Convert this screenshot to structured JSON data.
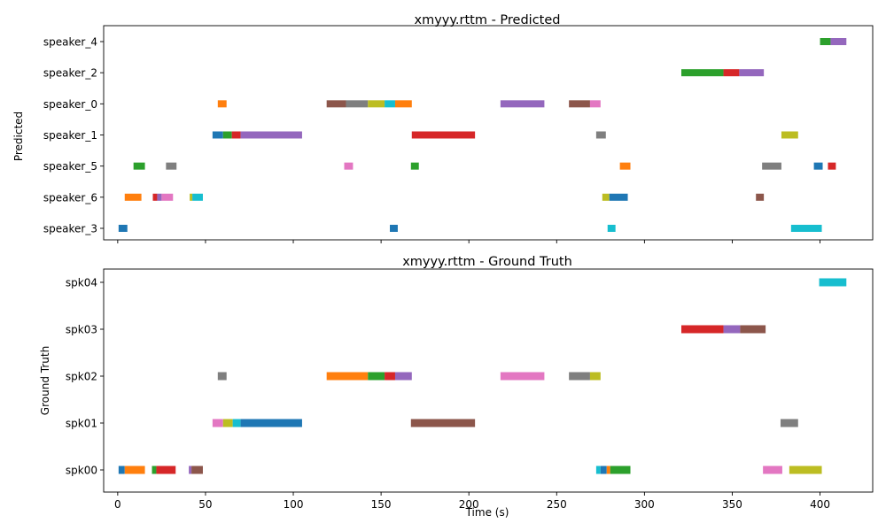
{
  "figure": {
    "xlabel": "Time (s)",
    "x_ticks": [
      0,
      50,
      100,
      150,
      200,
      250,
      300,
      350,
      400
    ],
    "xlim": [
      -8,
      430
    ]
  },
  "chart_data": [
    {
      "type": "bar",
      "orientation": "horizontal-segments",
      "title": "xmyyy.rttm - Predicted",
      "ylabel": "Predicted",
      "rows": [
        "speaker_4",
        "speaker_2",
        "speaker_0",
        "speaker_1",
        "speaker_5",
        "speaker_6",
        "speaker_3"
      ],
      "segments": [
        {
          "row": "speaker_3",
          "start": 0.5,
          "end": 5.5,
          "color": "#1f77b4"
        },
        {
          "row": "speaker_6",
          "start": 4,
          "end": 13.5,
          "color": "#ff7f0e"
        },
        {
          "row": "speaker_5",
          "start": 9,
          "end": 15.5,
          "color": "#2ca02c"
        },
        {
          "row": "speaker_6",
          "start": 20,
          "end": 22.5,
          "color": "#d62728"
        },
        {
          "row": "speaker_6",
          "start": 22.5,
          "end": 25,
          "color": "#9467bd"
        },
        {
          "row": "speaker_6",
          "start": 25,
          "end": 31.5,
          "color": "#e377c2"
        },
        {
          "row": "speaker_5",
          "start": 27.5,
          "end": 33.5,
          "color": "#7f7f7f"
        },
        {
          "row": "speaker_6",
          "start": 41,
          "end": 42.5,
          "color": "#bcbd22"
        },
        {
          "row": "speaker_6",
          "start": 42.5,
          "end": 48.5,
          "color": "#17becf"
        },
        {
          "row": "speaker_1",
          "start": 54,
          "end": 60,
          "color": "#1f77b4"
        },
        {
          "row": "speaker_0",
          "start": 57,
          "end": 62,
          "color": "#ff7f0e"
        },
        {
          "row": "speaker_1",
          "start": 60,
          "end": 65,
          "color": "#2ca02c"
        },
        {
          "row": "speaker_1",
          "start": 65,
          "end": 70,
          "color": "#d62728"
        },
        {
          "row": "speaker_1",
          "start": 70,
          "end": 105,
          "color": "#9467bd"
        },
        {
          "row": "speaker_0",
          "start": 119,
          "end": 130,
          "color": "#8c564b"
        },
        {
          "row": "speaker_5",
          "start": 129,
          "end": 134,
          "color": "#e377c2"
        },
        {
          "row": "speaker_0",
          "start": 130,
          "end": 142.5,
          "color": "#7f7f7f"
        },
        {
          "row": "speaker_0",
          "start": 142.5,
          "end": 152,
          "color": "#bcbd22"
        },
        {
          "row": "speaker_0",
          "start": 152,
          "end": 158,
          "color": "#17becf"
        },
        {
          "row": "speaker_3",
          "start": 155,
          "end": 159.5,
          "color": "#1f77b4"
        },
        {
          "row": "speaker_0",
          "start": 158,
          "end": 167.5,
          "color": "#ff7f0e"
        },
        {
          "row": "speaker_5",
          "start": 167,
          "end": 171.5,
          "color": "#2ca02c"
        },
        {
          "row": "speaker_1",
          "start": 167.5,
          "end": 203.5,
          "color": "#d62728"
        },
        {
          "row": "speaker_0",
          "start": 218,
          "end": 243,
          "color": "#9467bd"
        },
        {
          "row": "speaker_0",
          "start": 257,
          "end": 269,
          "color": "#8c564b"
        },
        {
          "row": "speaker_0",
          "start": 269,
          "end": 275,
          "color": "#e377c2"
        },
        {
          "row": "speaker_1",
          "start": 272.5,
          "end": 278,
          "color": "#7f7f7f"
        },
        {
          "row": "speaker_6",
          "start": 276,
          "end": 280,
          "color": "#bcbd22"
        },
        {
          "row": "speaker_3",
          "start": 279,
          "end": 283.5,
          "color": "#17becf"
        },
        {
          "row": "speaker_6",
          "start": 280,
          "end": 290.5,
          "color": "#1f77b4"
        },
        {
          "row": "speaker_5",
          "start": 286,
          "end": 292,
          "color": "#ff7f0e"
        },
        {
          "row": "speaker_2",
          "start": 321,
          "end": 345,
          "color": "#2ca02c"
        },
        {
          "row": "speaker_2",
          "start": 345,
          "end": 354,
          "color": "#d62728"
        },
        {
          "row": "speaker_2",
          "start": 354,
          "end": 368,
          "color": "#9467bd"
        },
        {
          "row": "speaker_6",
          "start": 363.5,
          "end": 368,
          "color": "#8c564b"
        },
        {
          "row": "speaker_5",
          "start": 367,
          "end": 378,
          "color": "#7f7f7f"
        },
        {
          "row": "speaker_1",
          "start": 378,
          "end": 387.5,
          "color": "#bcbd22"
        },
        {
          "row": "speaker_3",
          "start": 383.5,
          "end": 401,
          "color": "#17becf"
        },
        {
          "row": "speaker_5",
          "start": 396.5,
          "end": 401.5,
          "color": "#1f77b4"
        },
        {
          "row": "speaker_4",
          "start": 400,
          "end": 406,
          "color": "#2ca02c"
        },
        {
          "row": "speaker_5",
          "start": 404.5,
          "end": 409,
          "color": "#d62728"
        },
        {
          "row": "speaker_4",
          "start": 406,
          "end": 415,
          "color": "#9467bd"
        }
      ]
    },
    {
      "type": "bar",
      "orientation": "horizontal-segments",
      "title": "xmyyy.rttm - Ground Truth",
      "ylabel": "Ground Truth",
      "rows": [
        "spk04",
        "spk03",
        "spk02",
        "spk01",
        "spk00"
      ],
      "segments": [
        {
          "row": "spk00",
          "start": 0.5,
          "end": 4,
          "color": "#1f77b4"
        },
        {
          "row": "spk00",
          "start": 4,
          "end": 15.5,
          "color": "#ff7f0e"
        },
        {
          "row": "spk00",
          "start": 19.5,
          "end": 22,
          "color": "#2ca02c"
        },
        {
          "row": "spk00",
          "start": 22,
          "end": 33,
          "color": "#d62728"
        },
        {
          "row": "spk00",
          "start": 40.5,
          "end": 42,
          "color": "#9467bd"
        },
        {
          "row": "spk00",
          "start": 42,
          "end": 48.5,
          "color": "#8c564b"
        },
        {
          "row": "spk01",
          "start": 54,
          "end": 60,
          "color": "#e377c2"
        },
        {
          "row": "spk02",
          "start": 57,
          "end": 62,
          "color": "#7f7f7f"
        },
        {
          "row": "spk01",
          "start": 60,
          "end": 65.5,
          "color": "#bcbd22"
        },
        {
          "row": "spk01",
          "start": 65.5,
          "end": 70,
          "color": "#17becf"
        },
        {
          "row": "spk01",
          "start": 70,
          "end": 105,
          "color": "#1f77b4"
        },
        {
          "row": "spk02",
          "start": 119,
          "end": 142.5,
          "color": "#ff7f0e"
        },
        {
          "row": "spk02",
          "start": 142.5,
          "end": 152,
          "color": "#2ca02c"
        },
        {
          "row": "spk02",
          "start": 152,
          "end": 158,
          "color": "#d62728"
        },
        {
          "row": "spk02",
          "start": 158,
          "end": 167.5,
          "color": "#9467bd"
        },
        {
          "row": "spk01",
          "start": 167,
          "end": 203.5,
          "color": "#8c564b"
        },
        {
          "row": "spk02",
          "start": 218,
          "end": 243,
          "color": "#e377c2"
        },
        {
          "row": "spk02",
          "start": 257,
          "end": 269,
          "color": "#7f7f7f"
        },
        {
          "row": "spk02",
          "start": 269,
          "end": 275,
          "color": "#bcbd22"
        },
        {
          "row": "spk00",
          "start": 272.5,
          "end": 275,
          "color": "#17becf"
        },
        {
          "row": "spk00",
          "start": 275,
          "end": 278.5,
          "color": "#1f77b4"
        },
        {
          "row": "spk00",
          "start": 278.5,
          "end": 280.5,
          "color": "#ff7f0e"
        },
        {
          "row": "spk00",
          "start": 280.5,
          "end": 292,
          "color": "#2ca02c"
        },
        {
          "row": "spk03",
          "start": 321,
          "end": 345,
          "color": "#d62728"
        },
        {
          "row": "spk03",
          "start": 345,
          "end": 354.5,
          "color": "#9467bd"
        },
        {
          "row": "spk03",
          "start": 354.5,
          "end": 369,
          "color": "#8c564b"
        },
        {
          "row": "spk00",
          "start": 367.5,
          "end": 378.5,
          "color": "#e377c2"
        },
        {
          "row": "spk01",
          "start": 377.5,
          "end": 387.5,
          "color": "#7f7f7f"
        },
        {
          "row": "spk00",
          "start": 382.5,
          "end": 401,
          "color": "#bcbd22"
        },
        {
          "row": "spk04",
          "start": 399.5,
          "end": 415,
          "color": "#17becf"
        }
      ]
    }
  ]
}
